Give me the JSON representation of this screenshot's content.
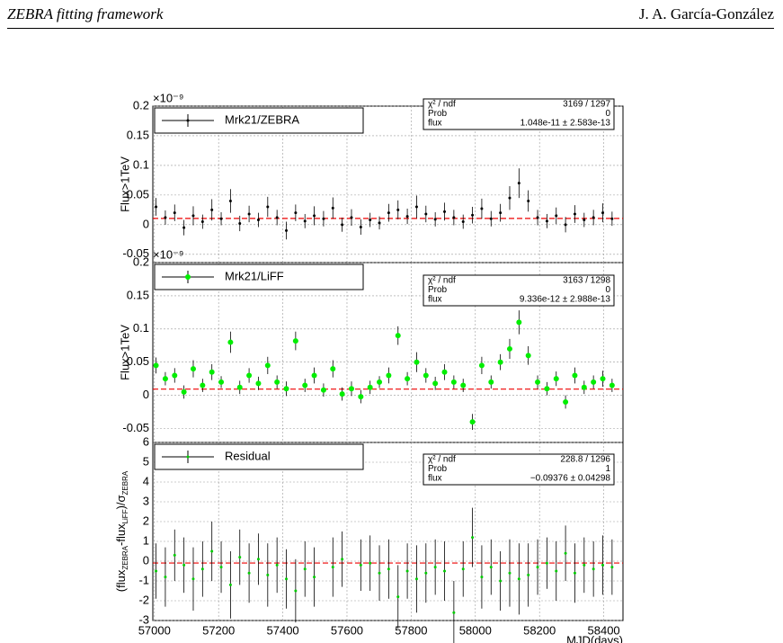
{
  "header": {
    "left": "ZEBRA fitting framework",
    "right": "J. A. García-González"
  },
  "chart_data": [
    {
      "type": "errorbar",
      "exponent": "×10⁻⁹",
      "ylabel": "Flux>1TeV",
      "legend": "Mrk21/ZEBRA",
      "color": "#000000",
      "marker": "dot",
      "stats": [
        [
          "χ² / ndf",
          "3169 / 1297"
        ],
        [
          "Prob",
          "0"
        ],
        [
          "flux",
          "1.048e-11 ± 2.583e-13"
        ]
      ],
      "fit": 0.01048,
      "xlim": [
        56995,
        58460
      ],
      "xticks": [
        57000,
        57200,
        57400,
        57600,
        57800,
        58000,
        58200,
        58400
      ],
      "ylim": [
        -0.064,
        0.2
      ],
      "yticks": [
        -0.05,
        0,
        0.05,
        0.1,
        0.15,
        0.2
      ],
      "grid": true,
      "x": [
        57005,
        57034,
        57063,
        57092,
        57121,
        57150,
        57179,
        57208,
        57237,
        57266,
        57295,
        57324,
        57353,
        57382,
        57411,
        57440,
        57469,
        57498,
        57527,
        57556,
        57585,
        57614,
        57643,
        57672,
        57701,
        57730,
        57759,
        57788,
        57817,
        57846,
        57875,
        57904,
        57933,
        57962,
        57991,
        58020,
        58049,
        58078,
        58107,
        58136,
        58165,
        58194,
        58223,
        58252,
        58281,
        58310,
        58339,
        58368,
        58397,
        58426
      ],
      "values": [
        0.03,
        0.012,
        0.02,
        -0.005,
        0.015,
        0.005,
        0.025,
        0.01,
        0.04,
        0.002,
        0.018,
        0.008,
        0.03,
        0.012,
        -0.01,
        0.02,
        0.006,
        0.015,
        0.01,
        0.028,
        0,
        0.012,
        -0.004,
        0.008,
        0.003,
        0.02,
        0.025,
        0.014,
        0.03,
        0.018,
        0.009,
        0.022,
        0.012,
        0.005,
        0.016,
        0.027,
        0.01,
        0.02,
        0.045,
        0.07,
        0.04,
        0.012,
        0.006,
        0.015,
        0,
        0.018,
        0.008,
        0.012,
        0.02,
        0.01
      ],
      "errors": [
        0.015,
        0.012,
        0.014,
        0.013,
        0.016,
        0.012,
        0.018,
        0.011,
        0.02,
        0.013,
        0.014,
        0.012,
        0.017,
        0.013,
        0.015,
        0.014,
        0.012,
        0.016,
        0.013,
        0.018,
        0.012,
        0.014,
        0.013,
        0.012,
        0.011,
        0.015,
        0.016,
        0.013,
        0.019,
        0.014,
        0.012,
        0.015,
        0.013,
        0.012,
        0.014,
        0.017,
        0.013,
        0.015,
        0.02,
        0.025,
        0.018,
        0.013,
        0.012,
        0.014,
        0.013,
        0.015,
        0.012,
        0.013,
        0.016,
        0.012
      ]
    },
    {
      "type": "errorbar",
      "exponent": "×10⁻⁹",
      "ylabel": "Flux>1TeV",
      "legend": "Mrk21/LiFF",
      "color": "#00ee00",
      "marker": "circle",
      "stats": [
        [
          "χ² / ndf",
          "3163 / 1298"
        ],
        [
          "Prob",
          "0"
        ],
        [
          "flux",
          "9.336e-12 ± 2.988e-13"
        ]
      ],
      "fit": 0.009336,
      "xlim": [
        56995,
        58460
      ],
      "xticks": [
        57000,
        57200,
        57400,
        57600,
        57800,
        58000,
        58200,
        58400
      ],
      "ylim": [
        -0.071,
        0.2
      ],
      "yticks": [
        -0.05,
        0,
        0.05,
        0.1,
        0.15,
        0.2
      ],
      "grid": true,
      "x": [
        57005,
        57034,
        57063,
        57092,
        57121,
        57150,
        57179,
        57208,
        57237,
        57266,
        57295,
        57324,
        57353,
        57382,
        57411,
        57440,
        57469,
        57498,
        57527,
        57556,
        57585,
        57614,
        57643,
        57672,
        57701,
        57730,
        57759,
        57788,
        57817,
        57846,
        57875,
        57904,
        57933,
        57962,
        57991,
        58020,
        58049,
        58078,
        58107,
        58136,
        58165,
        58194,
        58223,
        58252,
        58281,
        58310,
        58339,
        58368,
        58397,
        58426
      ],
      "values": [
        0.045,
        0.025,
        0.03,
        0.005,
        0.04,
        0.015,
        0.035,
        0.02,
        0.08,
        0.012,
        0.03,
        0.018,
        0.045,
        0.02,
        0.01,
        0.082,
        0.015,
        0.03,
        0.008,
        0.04,
        0.002,
        0.01,
        -0.002,
        0.012,
        0.02,
        0.03,
        0.09,
        0.025,
        0.05,
        0.03,
        0.018,
        0.035,
        0.02,
        0.015,
        -0.04,
        0.045,
        0.02,
        0.05,
        0.07,
        0.11,
        0.06,
        0.02,
        0.01,
        0.025,
        -0.01,
        0.03,
        0.012,
        0.02,
        0.025,
        0.015
      ],
      "errors": [
        0.012,
        0.01,
        0.011,
        0.01,
        0.013,
        0.01,
        0.012,
        0.009,
        0.016,
        0.01,
        0.011,
        0.01,
        0.013,
        0.01,
        0.011,
        0.014,
        0.01,
        0.012,
        0.01,
        0.013,
        0.01,
        0.011,
        0.01,
        0.01,
        0.009,
        0.012,
        0.014,
        0.01,
        0.015,
        0.011,
        0.01,
        0.012,
        0.01,
        0.01,
        0.012,
        0.013,
        0.01,
        0.012,
        0.015,
        0.018,
        0.014,
        0.01,
        0.01,
        0.011,
        0.01,
        0.012,
        0.01,
        0.01,
        0.012,
        0.01
      ]
    },
    {
      "type": "errorbar",
      "ylabel": [
        "(flux",
        "ZEBRA",
        "-flux",
        "LiFF",
        ")/σ",
        "ZEBRA"
      ],
      "legend": "Residual",
      "color": "#00cc00",
      "marker": "dot",
      "xlabel": "MJD(days)",
      "stats": [
        [
          "χ² / ndf",
          "228.8 / 1296"
        ],
        [
          "Prob",
          "1"
        ],
        [
          "flux",
          "−0.09376 ± 0.04298"
        ]
      ],
      "fit": -0.09376,
      "xlim": [
        56995,
        58460
      ],
      "xticks": [
        57000,
        57200,
        57400,
        57600,
        57800,
        58000,
        58200,
        58400
      ],
      "ylim": [
        -3,
        6
      ],
      "yticks": [
        -3,
        -2,
        -1,
        0,
        1,
        2,
        3,
        4,
        5,
        6
      ],
      "grid": true,
      "x": [
        57005,
        57034,
        57063,
        57092,
        57121,
        57150,
        57179,
        57208,
        57237,
        57266,
        57295,
        57324,
        57353,
        57382,
        57411,
        57440,
        57469,
        57498,
        57556,
        57585,
        57643,
        57672,
        57701,
        57730,
        57759,
        57788,
        57817,
        57846,
        57875,
        57904,
        57933,
        57962,
        57991,
        58020,
        58049,
        58078,
        58107,
        58136,
        58165,
        58194,
        58223,
        58252,
        58281,
        58310,
        58339,
        58368,
        58397,
        58426
      ],
      "values": [
        -0.5,
        -0.8,
        0.3,
        -0.2,
        -0.9,
        -0.4,
        0.5,
        -0.3,
        -1.2,
        0.2,
        -0.6,
        0.1,
        -0.7,
        -0.2,
        -0.9,
        -1.5,
        -0.4,
        -0.8,
        -0.3,
        0.1,
        -0.2,
        -0.1,
        -0.6,
        -0.4,
        -1.8,
        -0.5,
        -0.9,
        -0.6,
        -0.3,
        -0.5,
        -2.6,
        -0.4,
        1.2,
        -0.8,
        -0.3,
        -1,
        -0.6,
        -0.9,
        -0.7,
        -0.3,
        -0.1,
        -0.5,
        0.4,
        -0.6,
        -0.2,
        -0.4,
        -0.2,
        -0.3
      ],
      "errors": [
        1.4,
        1.5,
        1.3,
        1.4,
        1.6,
        1.4,
        1.5,
        1.3,
        1.7,
        1.4,
        1.5,
        1.3,
        1.6,
        1.4,
        1.5,
        1.6,
        1.4,
        1.5,
        1.5,
        1.4,
        1.3,
        1.4,
        1.4,
        1.5,
        1.6,
        1.4,
        1.7,
        1.5,
        1.4,
        1.5,
        1.6,
        1.4,
        1.5,
        1.6,
        1.4,
        1.5,
        1.7,
        1.8,
        1.6,
        1.4,
        1.3,
        1.5,
        1.4,
        1.5,
        1.4,
        1.4,
        1.5,
        1.4
      ]
    }
  ]
}
